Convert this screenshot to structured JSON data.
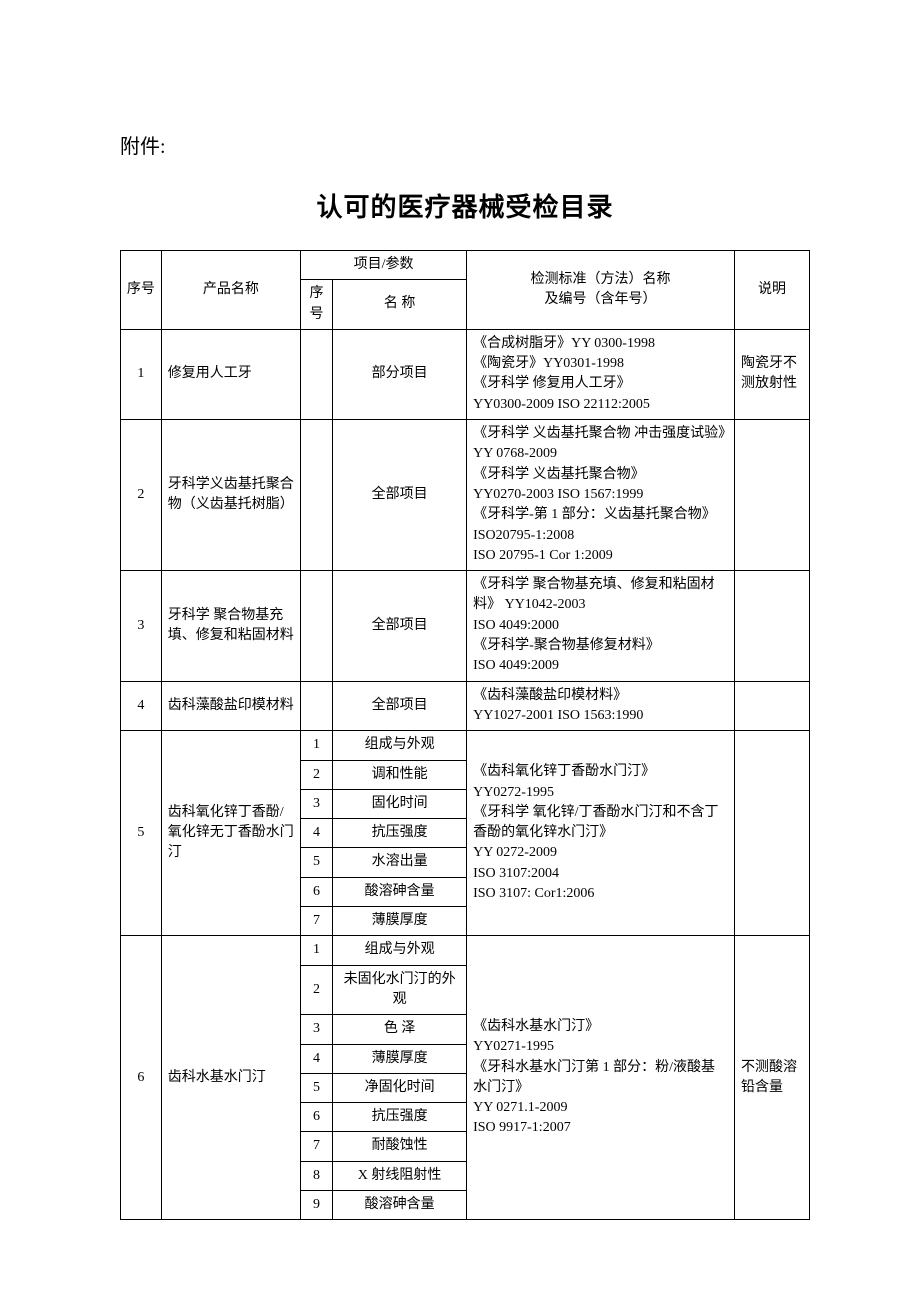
{
  "attachment_label": "附件:",
  "title": "认可的医疗器械受检目录",
  "header": {
    "seq": "序号",
    "product": "产品名称",
    "param_group": "项目/参数",
    "param_seq": "序号",
    "param_name": "名 称",
    "standard": "检测标准（方法）名称\n及编号（含年号）",
    "note": "说明"
  },
  "rows": [
    {
      "seq": "1",
      "product": "修复用人工牙",
      "params": [
        {
          "no": "",
          "name": "部分项目"
        }
      ],
      "standard": "《合成树脂牙》YY 0300-1998\n《陶瓷牙》YY0301-1998\n《牙科学  修复用人工牙》\nYY0300-2009    ISO 22112:2005",
      "note": "陶瓷牙不测放射性"
    },
    {
      "seq": "2",
      "product": "牙科学义齿基托聚合物（义齿基托树脂）",
      "params": [
        {
          "no": "",
          "name": "全部项目"
        }
      ],
      "standard": "《牙科学  义齿基托聚合物  冲击强度试验》YY 0768-2009\n《牙科学  义齿基托聚合物》\nYY0270-2003      ISO 1567:1999\n《牙科学-第 1 部分：义齿基托聚合物》  ISO20795-1:2008\nISO 20795-1 Cor 1:2009",
      "note": ""
    },
    {
      "seq": "3",
      "product": "牙科学  聚合物基充填、修复和粘固材料",
      "params": [
        {
          "no": "",
          "name": "全部项目"
        }
      ],
      "standard": "《牙科学  聚合物基充填、修复和粘固材料》    YY1042-2003\nISO 4049:2000\n《牙科学-聚合物基修复材料》\nISO 4049:2009",
      "note": ""
    },
    {
      "seq": "4",
      "product": "齿科藻酸盐印模材料",
      "params": [
        {
          "no": "",
          "name": "全部项目"
        }
      ],
      "standard": "《齿科藻酸盐印模材料》\nYY1027-2001 ISO 1563:1990",
      "note": ""
    },
    {
      "seq": "5",
      "product": "齿科氧化锌丁香酚/氧化锌无丁香酚水门汀",
      "params": [
        {
          "no": "1",
          "name": "组成与外观"
        },
        {
          "no": "2",
          "name": "调和性能"
        },
        {
          "no": "3",
          "name": "固化时间"
        },
        {
          "no": "4",
          "name": "抗压强度"
        },
        {
          "no": "5",
          "name": "水溶出量"
        },
        {
          "no": "6",
          "name": "酸溶砷含量"
        },
        {
          "no": "7",
          "name": "薄膜厚度"
        }
      ],
      "standard": "《齿科氧化锌丁香酚水门汀》\nYY0272-1995\n《牙科学  氧化锌/丁香酚水门汀和不含丁香酚的氧化锌水门汀》\nYY 0272-2009\nISO 3107:2004\nISO 3107: Cor1:2006",
      "note": ""
    },
    {
      "seq": "6",
      "product": "齿科水基水门汀",
      "params": [
        {
          "no": "1",
          "name": "组成与外观"
        },
        {
          "no": "2",
          "name": "未固化水门汀的外观"
        },
        {
          "no": "3",
          "name": "色        泽"
        },
        {
          "no": "4",
          "name": "薄膜厚度"
        },
        {
          "no": "5",
          "name": "净固化时间"
        },
        {
          "no": "6",
          "name": "抗压强度"
        },
        {
          "no": "7",
          "name": "耐酸蚀性"
        },
        {
          "no": "8",
          "name": "X 射线阻射性"
        },
        {
          "no": "9",
          "name": "酸溶砷含量"
        }
      ],
      "standard": "《齿科水基水门汀》\nYY0271-1995\n《牙科水基水门汀第 1 部分：粉/液酸基水门汀》\nYY 0271.1-2009\nISO 9917-1:2007",
      "note": "不测酸溶铅含量"
    }
  ]
}
